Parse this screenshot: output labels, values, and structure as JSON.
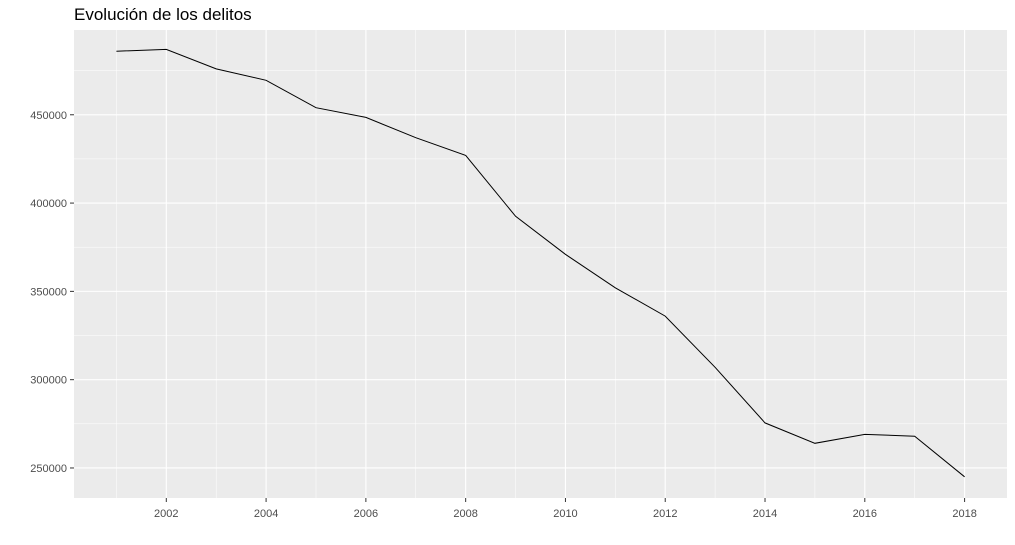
{
  "chart_data": {
    "type": "line",
    "title": "Evolución de los delitos",
    "xlabel": "",
    "ylabel": "",
    "x": [
      2001,
      2002,
      2003,
      2004,
      2005,
      2006,
      2007,
      2008,
      2009,
      2010,
      2011,
      2012,
      2013,
      2014,
      2015,
      2016,
      2017,
      2018
    ],
    "series": [
      {
        "values": [
          486000,
          487000,
          476000,
          469500,
          454000,
          448500,
          437000,
          427000,
          392500,
          371000,
          352000,
          336000,
          307000,
          275500,
          264000,
          269000,
          268000,
          245000
        ]
      }
    ],
    "xlim": [
      2000.15,
      2018.85
    ],
    "ylim": [
      233000,
      498000
    ],
    "x_ticks": [
      2002,
      2004,
      2006,
      2008,
      2010,
      2012,
      2014,
      2016,
      2018
    ],
    "y_ticks": [
      250000,
      300000,
      350000,
      400000,
      450000
    ],
    "x_tick_labels": [
      "2002",
      "2004",
      "2006",
      "2008",
      "2010",
      "2012",
      "2014",
      "2016",
      "2018"
    ],
    "y_tick_labels": [
      "250000",
      "300000",
      "350000",
      "400000",
      "450000"
    ],
    "grid": true,
    "colors": {
      "panel": "#ebebeb",
      "grid": "#ffffff",
      "line": "#000000",
      "tick_text": "#4d4d4d",
      "tick_mark": "#333333"
    }
  }
}
